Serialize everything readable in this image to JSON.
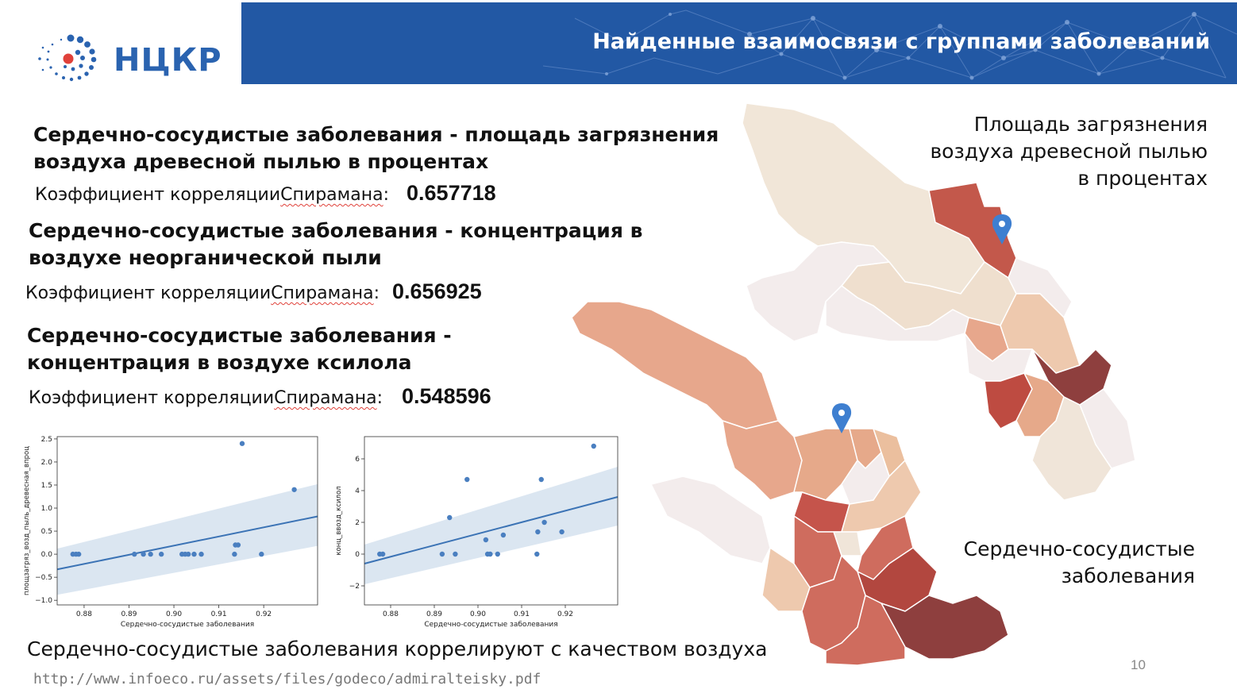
{
  "header": {
    "logo_text": "НЦКР",
    "title": "Найденные взаимосвязи с группами заболеваний"
  },
  "correlations": [
    {
      "heading_line1": "Сердечно-сосудистые заболевания - площадь загрязнения",
      "heading_line2": "воздуха древесной пылью в процентах",
      "label_prefix": "Коэффициент корреляции ",
      "label_word": "Спирамана",
      "label_suffix": ":",
      "value": "0.657718"
    },
    {
      "heading_line1": "Сердечно-сосудистые заболевания - концентрация в",
      "heading_line2": "воздухе неорганической пыли",
      "label_prefix": "Коэффициент корреляции ",
      "label_word": "Спирамана",
      "label_suffix": ":",
      "value": "0.656925"
    },
    {
      "heading_line1": "Сердечно-сосудистые заболевания -",
      "heading_line2": "концентрация в воздухе ксилола",
      "label_prefix": "Коэффициент корреляции ",
      "label_word": "Спирамана",
      "label_suffix": ":",
      "value": "0.548596"
    }
  ],
  "map": {
    "caption_top_lines": [
      "Площадь загрязнения",
      "воздуха древесной пылью",
      "в процентах"
    ],
    "caption_bottom_lines": [
      "Сердечно-сосудистые",
      "заболевания"
    ]
  },
  "chart_data": [
    {
      "type": "scatter",
      "xlabel": "Сердечно-сосудистые заболевания",
      "ylabel": "площзагряз_возд_пыль_древесная_впроц",
      "xlim": [
        0.874,
        0.932
      ],
      "ylim": [
        -1.1,
        2.55
      ],
      "xticks": [
        "0.88",
        "0.89",
        "0.90",
        "0.91",
        "0.92"
      ],
      "xtick_values": [
        0.88,
        0.89,
        0.9,
        0.91,
        0.92
      ],
      "yticks": [
        "−1.0",
        "−0.5",
        "0.0",
        "0.5",
        "1.0",
        "1.5",
        "2.0",
        "2.5"
      ],
      "ytick_values": [
        -1.0,
        -0.5,
        0.0,
        0.5,
        1.0,
        1.5,
        2.0,
        2.5
      ],
      "points": [
        {
          "x": 0.8775,
          "y": 0.0
        },
        {
          "x": 0.8782,
          "y": 0.0
        },
        {
          "x": 0.8788,
          "y": 0.0
        },
        {
          "x": 0.8912,
          "y": 0.0
        },
        {
          "x": 0.8932,
          "y": 0.0
        },
        {
          "x": 0.8948,
          "y": 0.0
        },
        {
          "x": 0.8972,
          "y": 0.0
        },
        {
          "x": 0.9018,
          "y": 0.0
        },
        {
          "x": 0.9025,
          "y": 0.0
        },
        {
          "x": 0.9032,
          "y": 0.0
        },
        {
          "x": 0.9045,
          "y": 0.0
        },
        {
          "x": 0.9061,
          "y": 0.0
        },
        {
          "x": 0.9135,
          "y": 0.0
        },
        {
          "x": 0.9137,
          "y": 0.2
        },
        {
          "x": 0.9143,
          "y": 0.2
        },
        {
          "x": 0.9152,
          "y": 2.4
        },
        {
          "x": 0.9195,
          "y": 0.0
        },
        {
          "x": 0.9268,
          "y": 1.4
        }
      ],
      "fit_line": {
        "x": [
          0.874,
          0.932
        ],
        "y": [
          -0.33,
          0.82
        ]
      },
      "confidence_band": {
        "x": [
          0.874,
          0.932
        ],
        "upper": [
          0.12,
          1.52
        ],
        "lower": [
          -0.88,
          0.18
        ]
      }
    },
    {
      "type": "scatter",
      "xlabel": "Сердечно-сосудистые заболевания",
      "ylabel": "конц_ввозд_ксилол",
      "xlim": [
        0.874,
        0.932
      ],
      "ylim": [
        -3.2,
        7.4
      ],
      "xticks": [
        "0.88",
        "0.89",
        "0.90",
        "0.91",
        "0.92"
      ],
      "xtick_values": [
        0.88,
        0.89,
        0.9,
        0.91,
        0.92
      ],
      "yticks": [
        "−2",
        "0",
        "2",
        "4",
        "6"
      ],
      "ytick_values": [
        -2,
        0,
        2,
        4,
        6
      ],
      "points": [
        {
          "x": 0.8775,
          "y": 0.0
        },
        {
          "x": 0.8782,
          "y": 0.0
        },
        {
          "x": 0.8918,
          "y": 0.0
        },
        {
          "x": 0.8935,
          "y": 2.3
        },
        {
          "x": 0.8948,
          "y": 0.0
        },
        {
          "x": 0.8975,
          "y": 4.7
        },
        {
          "x": 0.9018,
          "y": 0.9
        },
        {
          "x": 0.9022,
          "y": 0.0
        },
        {
          "x": 0.9028,
          "y": 0.0
        },
        {
          "x": 0.9045,
          "y": 0.0
        },
        {
          "x": 0.9058,
          "y": 1.2
        },
        {
          "x": 0.9135,
          "y": 0.0
        },
        {
          "x": 0.9137,
          "y": 1.4
        },
        {
          "x": 0.9145,
          "y": 4.7
        },
        {
          "x": 0.9152,
          "y": 2.0
        },
        {
          "x": 0.9192,
          "y": 1.4
        },
        {
          "x": 0.9265,
          "y": 6.8
        }
      ],
      "fit_line": {
        "x": [
          0.874,
          0.932
        ],
        "y": [
          -0.6,
          3.6
        ]
      },
      "confidence_band": {
        "x": [
          0.874,
          0.932
        ],
        "upper": [
          0.6,
          5.5
        ],
        "lower": [
          -1.9,
          1.8
        ]
      }
    }
  ],
  "footer": {
    "summary": "Сердечно-сосудистые заболевания коррелируют с качеством воздуха",
    "source_url": "http://www.infoeco.ru/assets/files/godeco/admiralteisky.pdf",
    "page_number": "10"
  },
  "colors": {
    "banner": "#2258a4",
    "logo_blue": "#2a63b0",
    "logo_red": "#e0413a",
    "scatter_point": "#4a7fc0",
    "fit_line": "#3b73b5",
    "band": "#d7e3f0"
  }
}
